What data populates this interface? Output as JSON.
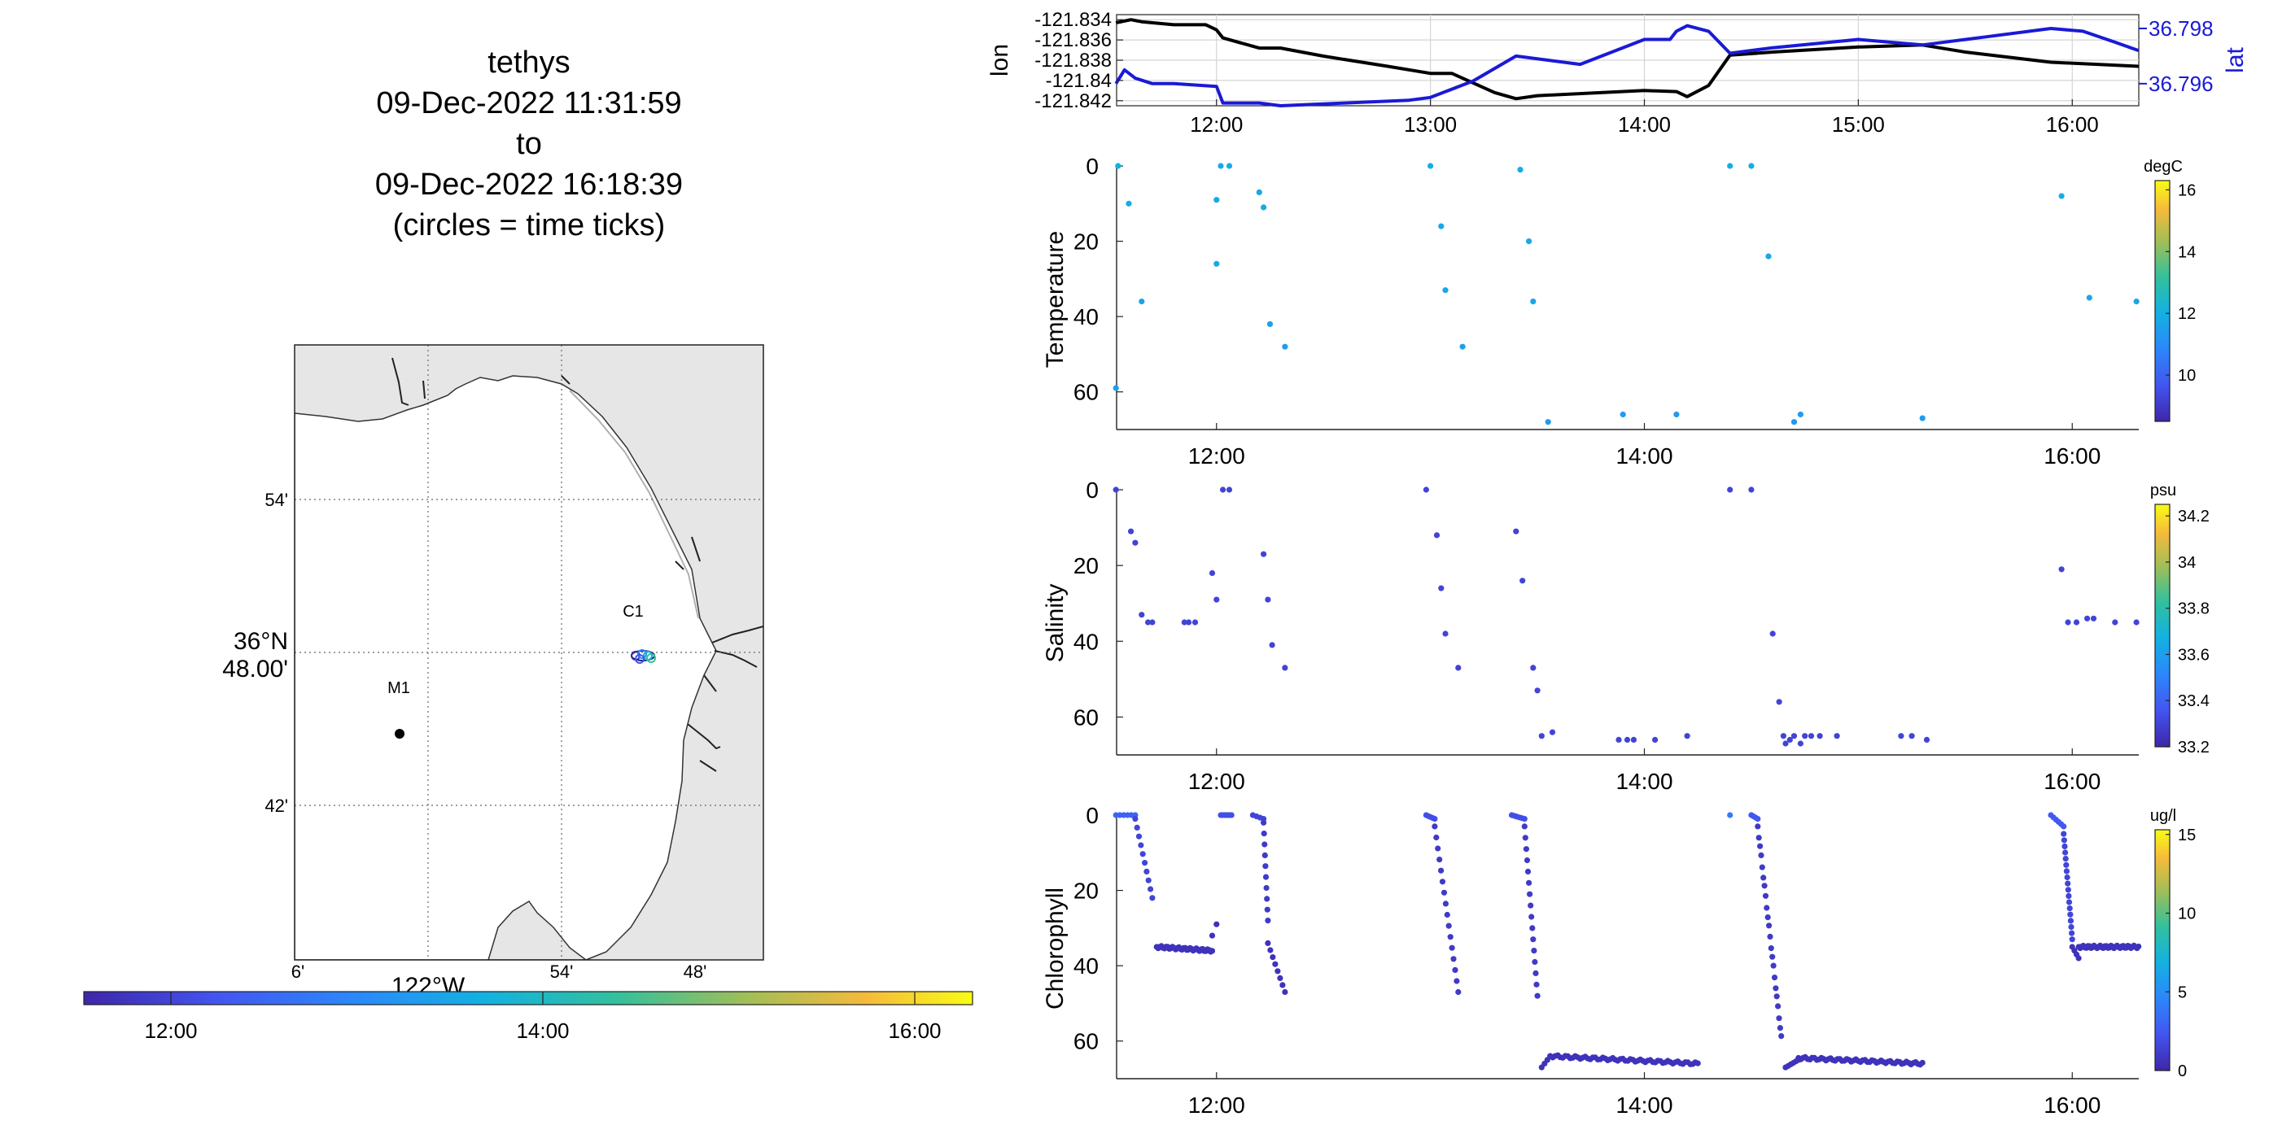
{
  "title": {
    "lines": [
      "tethys",
      "09-Dec-2022 11:31:59",
      "to",
      "09-Dec-2022 16:18:39",
      "(circles = time ticks)"
    ]
  },
  "colors": {
    "lon_line": "#000000",
    "lat_line": "#1a1ad6",
    "land": "#e6e6e6",
    "grid": "#c8c8c8"
  },
  "chart_data": [
    {
      "type": "map",
      "name": "track-map",
      "x_ticks": [
        "6'",
        "54'",
        "48'"
      ],
      "x_major_label": "122°W",
      "y_ticks": [
        "54'",
        "42'"
      ],
      "y_major_label": [
        "36°N",
        "48.00'"
      ],
      "stations": [
        {
          "label": "M1",
          "lon": -121.96,
          "lat": 36.75
        },
        {
          "label": "C1",
          "lon": -121.84,
          "lat": 36.797
        }
      ]
    },
    {
      "type": "colorbar",
      "name": "time-colorbar",
      "orientation": "horizontal",
      "tick_labels": [
        "12:00",
        "14:00",
        "16:00"
      ],
      "range": [
        "11:31:59",
        "16:18:39"
      ]
    },
    {
      "type": "line",
      "name": "lon-lat",
      "xlim": [
        11.533,
        16.311
      ],
      "x_ticks": [
        "12:00",
        "13:00",
        "14:00",
        "15:00",
        "16:00"
      ],
      "left_axis": {
        "label": "lon",
        "ticks": [
          "-121.834",
          "-121.836",
          "-121.838",
          "-121.84",
          "-121.842"
        ],
        "ylim": [
          -121.8425,
          -121.8335
        ]
      },
      "right_axis": {
        "label": "lat",
        "ticks": [
          "36.798",
          "36.796"
        ],
        "ylim": [
          36.7952,
          36.7985
        ]
      },
      "series": [
        {
          "name": "lon",
          "axis": "left",
          "x": [
            11.53,
            11.6,
            11.65,
            11.8,
            11.95,
            12.0,
            12.03,
            12.2,
            12.3,
            12.5,
            12.8,
            13.0,
            13.1,
            13.3,
            13.4,
            13.5,
            14.0,
            14.15,
            14.2,
            14.3,
            14.4,
            14.6,
            15.0,
            15.3,
            15.5,
            15.9,
            16.31
          ],
          "y": [
            -121.8343,
            -121.834,
            -121.8342,
            -121.8345,
            -121.8345,
            -121.835,
            -121.8358,
            -121.8368,
            -121.8368,
            -121.8376,
            -121.8386,
            -121.8393,
            -121.8393,
            -121.8412,
            -121.8418,
            -121.8415,
            -121.841,
            -121.8411,
            -121.8416,
            -121.8405,
            -121.8375,
            -121.8372,
            -121.8367,
            -121.8365,
            -121.8372,
            -121.8382,
            -121.8386
          ]
        },
        {
          "name": "lat",
          "axis": "right",
          "x": [
            11.53,
            11.57,
            11.62,
            11.7,
            11.8,
            12.0,
            12.03,
            12.2,
            12.3,
            12.6,
            12.9,
            13.0,
            13.2,
            13.4,
            13.7,
            14.0,
            14.12,
            14.15,
            14.2,
            14.3,
            14.4,
            14.6,
            15.0,
            15.3,
            15.6,
            15.9,
            16.05,
            16.2,
            16.31
          ],
          "y": [
            36.796,
            36.7965,
            36.7962,
            36.796,
            36.796,
            36.7959,
            36.7953,
            36.7953,
            36.7952,
            36.7953,
            36.7954,
            36.7955,
            36.7961,
            36.797,
            36.7967,
            36.7976,
            36.7976,
            36.7979,
            36.7981,
            36.7979,
            36.7971,
            36.7973,
            36.7976,
            36.7974,
            36.7977,
            36.798,
            36.7979,
            36.7975,
            36.7972
          ]
        }
      ]
    },
    {
      "type": "scatter",
      "name": "temperature",
      "ylabel": "Temperature",
      "unit": "degC",
      "xlim": [
        11.533,
        16.311
      ],
      "ylim": [
        70,
        0
      ],
      "y_ticks": [
        "0",
        "20",
        "40",
        "60"
      ],
      "x_ticks": [
        "12:00",
        "14:00",
        "16:00"
      ],
      "colorbar_ticks": [
        "16",
        "14",
        "12",
        "10"
      ],
      "colorbar_range": [
        8.5,
        16.3
      ],
      "x": [
        11.53,
        11.54,
        11.59,
        11.65,
        12.0,
        12.0,
        12.02,
        12.06,
        12.2,
        12.22,
        12.25,
        12.32,
        13.0,
        13.05,
        13.07,
        13.15,
        13.42,
        13.46,
        13.48,
        13.55,
        13.9,
        14.15,
        14.4,
        14.5,
        14.58,
        14.7,
        14.73,
        15.3,
        15.95,
        16.08,
        16.3
      ],
      "y": [
        59,
        0,
        10,
        36,
        26,
        9,
        0,
        0,
        7,
        11,
        42,
        48,
        0,
        16,
        33,
        48,
        1,
        20,
        36,
        68,
        66,
        66,
        0,
        0,
        24,
        68,
        66,
        67,
        8,
        35,
        36
      ],
      "c": [
        11.5,
        12.0,
        11.9,
        11.6,
        11.8,
        11.8,
        11.9,
        11.9,
        11.8,
        11.8,
        11.6,
        11.5,
        11.9,
        11.8,
        11.7,
        11.5,
        11.9,
        11.8,
        11.7,
        11.4,
        11.4,
        11.4,
        11.9,
        11.9,
        11.7,
        11.4,
        11.4,
        11.4,
        11.9,
        11.7,
        11.7
      ]
    },
    {
      "type": "scatter",
      "name": "salinity",
      "ylabel": "Salinity",
      "unit": "psu",
      "xlim": [
        11.533,
        16.311
      ],
      "ylim": [
        70,
        0
      ],
      "y_ticks": [
        "0",
        "20",
        "40",
        "60"
      ],
      "x_ticks": [
        "12:00",
        "14:00",
        "16:00"
      ],
      "colorbar_ticks": [
        "34.2",
        "34",
        "33.8",
        "33.6",
        "33.4",
        "33.2"
      ],
      "colorbar_range": [
        33.2,
        34.25
      ],
      "x": [
        11.53,
        11.6,
        11.62,
        11.65,
        11.68,
        11.7,
        11.85,
        11.87,
        11.9,
        11.98,
        12.0,
        12.03,
        12.06,
        12.22,
        12.24,
        12.26,
        12.32,
        12.98,
        13.03,
        13.05,
        13.07,
        13.13,
        13.4,
        13.43,
        13.48,
        13.5,
        13.52,
        13.57,
        13.88,
        13.92,
        13.95,
        14.05,
        14.2,
        14.4,
        14.5,
        14.6,
        14.63,
        14.65,
        14.66,
        14.68,
        14.7,
        14.73,
        14.75,
        14.78,
        14.82,
        14.9,
        15.2,
        15.25,
        15.32,
        15.95,
        15.98,
        16.02,
        16.07,
        16.1,
        16.2,
        16.3
      ],
      "y": [
        0,
        11,
        14,
        33,
        35,
        35,
        35,
        35,
        35,
        22,
        29,
        0,
        0,
        17,
        29,
        41,
        47,
        0,
        12,
        26,
        38,
        47,
        11,
        24,
        47,
        53,
        65,
        64,
        66,
        66,
        66,
        66,
        65,
        0,
        0,
        38,
        56,
        65,
        67,
        66,
        65,
        67,
        65,
        65,
        65,
        65,
        65,
        65,
        66,
        21,
        35,
        35,
        34,
        34,
        35,
        35
      ],
      "c": [
        33.3,
        33.3,
        33.3,
        33.3,
        33.3,
        33.3,
        33.3,
        33.3,
        33.3,
        33.3,
        33.3,
        33.3,
        33.3,
        33.3,
        33.3,
        33.3,
        33.3,
        33.3,
        33.3,
        33.3,
        33.3,
        33.3,
        33.3,
        33.3,
        33.3,
        33.3,
        33.3,
        33.3,
        33.3,
        33.3,
        33.3,
        33.3,
        33.3,
        33.3,
        33.3,
        33.3,
        33.3,
        33.3,
        33.3,
        33.3,
        33.3,
        33.3,
        33.3,
        33.3,
        33.3,
        33.3,
        33.3,
        33.3,
        33.3,
        33.3,
        33.3,
        33.3,
        33.3,
        33.3,
        33.3,
        33.3
      ]
    },
    {
      "type": "scatter",
      "name": "chlorophyll",
      "ylabel": "Chlorophyll",
      "unit": "ug/l",
      "xlim": [
        11.533,
        16.311
      ],
      "ylim": [
        70,
        0
      ],
      "y_ticks": [
        "0",
        "20",
        "40",
        "60"
      ],
      "x_ticks": [
        "12:00",
        "14:00",
        "16:00"
      ],
      "colorbar_ticks": [
        "15",
        "10",
        "5",
        "0"
      ],
      "colorbar_range": [
        0,
        15.3
      ],
      "segments": [
        {
          "x0": 11.53,
          "x1": 11.62,
          "y0": 0,
          "y1": 0,
          "n": 6,
          "c": 3.0
        },
        {
          "x0": 11.62,
          "x1": 11.7,
          "y0": 1,
          "y1": 22,
          "n": 10,
          "c": 1.5
        },
        {
          "x0": 11.72,
          "x1": 11.98,
          "y0": 35,
          "y1": 36,
          "n": 36,
          "c": 0.6
        },
        {
          "x0": 11.98,
          "x1": 12.0,
          "y0": 32,
          "y1": 29,
          "n": 2,
          "c": 0.6
        },
        {
          "x0": 12.02,
          "x1": 12.07,
          "y0": 0,
          "y1": 0,
          "n": 6,
          "c": 2.0
        },
        {
          "x0": 12.17,
          "x1": 12.22,
          "y0": 0,
          "y1": 1,
          "n": 4,
          "c": 1.5
        },
        {
          "x0": 12.22,
          "x1": 12.24,
          "y0": 2,
          "y1": 28,
          "n": 10,
          "c": 1.0
        },
        {
          "x0": 12.24,
          "x1": 12.32,
          "y0": 34,
          "y1": 47,
          "n": 8,
          "c": 0.6
        },
        {
          "x0": 12.98,
          "x1": 13.02,
          "y0": 0,
          "y1": 1,
          "n": 5,
          "c": 2.0
        },
        {
          "x0": 13.02,
          "x1": 13.13,
          "y0": 3,
          "y1": 47,
          "n": 16,
          "c": 1.0
        },
        {
          "x0": 13.38,
          "x1": 13.44,
          "y0": 0,
          "y1": 1,
          "n": 6,
          "c": 2.0
        },
        {
          "x0": 13.44,
          "x1": 13.5,
          "y0": 3,
          "y1": 48,
          "n": 16,
          "c": 1.0
        },
        {
          "x0": 13.52,
          "x1": 13.56,
          "y0": 67,
          "y1": 64,
          "n": 4,
          "c": 0.6
        },
        {
          "x0": 13.56,
          "x1": 14.25,
          "y0": 64,
          "y1": 66,
          "n": 60,
          "c": 0.6
        },
        {
          "x0": 14.4,
          "x1": 14.4,
          "y0": 0,
          "y1": 0,
          "n": 1,
          "c": 4.0
        },
        {
          "x0": 14.5,
          "x1": 14.53,
          "y0": 0,
          "y1": 1,
          "n": 4,
          "c": 2.5
        },
        {
          "x0": 14.53,
          "x1": 14.64,
          "y0": 3,
          "y1": 59,
          "n": 22,
          "c": 1.0
        },
        {
          "x0": 14.66,
          "x1": 14.72,
          "y0": 67,
          "y1": 65,
          "n": 6,
          "c": 0.6
        },
        {
          "x0": 14.72,
          "x1": 15.3,
          "y0": 64.5,
          "y1": 66,
          "n": 55,
          "c": 0.6
        },
        {
          "x0": 15.9,
          "x1": 15.96,
          "y0": 0,
          "y1": 3,
          "n": 6,
          "c": 2.5
        },
        {
          "x0": 15.96,
          "x1": 16.0,
          "y0": 5,
          "y1": 33,
          "n": 18,
          "c": 1.5
        },
        {
          "x0": 16.0,
          "x1": 16.03,
          "y0": 35,
          "y1": 38,
          "n": 4,
          "c": 0.6
        },
        {
          "x0": 16.03,
          "x1": 16.31,
          "y0": 35,
          "y1": 35,
          "n": 40,
          "c": 0.6
        }
      ]
    }
  ],
  "map_labels": {
    "m1": "M1",
    "c1": "C1"
  }
}
